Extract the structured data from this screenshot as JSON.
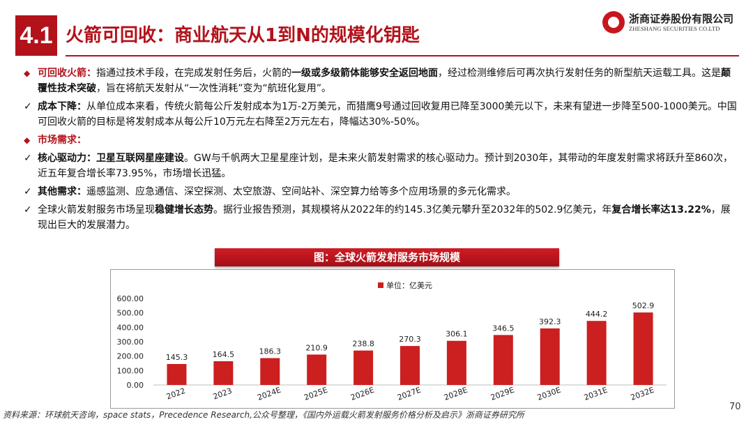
{
  "header": {
    "section": "4.1",
    "title": "火箭可回收：商业航天从1到N的规模化钥匙",
    "logo_cn": "浙商证券股份有限公司",
    "logo_en": "ZHESHANG SECURITIES CO.LTD"
  },
  "colors": {
    "accent": "#b3121b",
    "bar": "#cc1f1f"
  },
  "icons": {
    "diamond": "◆",
    "check": "✓"
  },
  "bullets": {
    "b1": {
      "label": "可回收火箭：",
      "t1": "指通过技术手段，在完成发射任务后，火箭的",
      "s1": "一级或多级箭体能够安全返回地面",
      "t2": "，经过检测维修后可再次执行发射任务的新型航天运载工具。这是",
      "s2": "颠覆性技术突破",
      "t3": "，旨在将航天发射从“一次性消耗”变为“航班化复用”。"
    },
    "b2": {
      "label": "成本下降：",
      "t1": "从单位成本来看，传统火箭每公斤发射成本为1万-2万美元，而猎鹰9号通过回收复用已降至3000美元以下，未来有望进一步降至500-1000美元。中国可回收火箭的目标是将发射成本从每公斤10万元左右降至2万元左右，降幅达30%-50%。"
    },
    "b3": {
      "label": "市场需求："
    },
    "b4": {
      "label": "核心驱动力：",
      "s1": "卫星互联网星座建设",
      "t1": "。GW与千帆两大卫星星座计划，是未来火箭发射需求的核心驱动力。预计到2030年，其带动的年度发射需求将跃升至860次，近五年复合增长率73.95%，市场增长迅猛。"
    },
    "b5": {
      "label": "其他需求：",
      "t1": "遥感监测、应急通信、深空探测、太空旅游、空间站补、深空算力给等多个应用场景的多元化需求。"
    },
    "b6": {
      "t1": "全球火箭发射服务市场呈现",
      "s1": "稳健增长态势",
      "t2": "。据行业报告预测，其规模将从2022年的约145.3亿美元攀升至2032年的502.9亿美元，年",
      "s2": "复合增长率达13.22%",
      "t3": "，展现出巨大的发展潜力。"
    }
  },
  "chart_banner": "图：全球火箭发射服务市场规模",
  "chart_data": {
    "type": "bar",
    "title": "",
    "categories": [
      "2022",
      "2023",
      "2024E",
      "2025E",
      "2026E",
      "2027E",
      "2028E",
      "2029E",
      "2030E",
      "2031E",
      "2032E"
    ],
    "series": [
      {
        "name": "单位：亿美元",
        "values": [
          145.3,
          164.5,
          186.3,
          210.9,
          238.8,
          270.3,
          306.1,
          346.5,
          392.3,
          444.2,
          502.9
        ]
      }
    ],
    "data_labels": [
      "145.3",
      "164.5",
      "186.3",
      "210.9",
      "238.8",
      "270.3",
      "306.1",
      "346.5",
      "392.3",
      "444.2",
      "502.9"
    ],
    "yticks": [
      "0.00",
      "100.00",
      "200.00",
      "300.00",
      "400.00",
      "500.00",
      "600.00"
    ],
    "ylim": [
      0,
      600
    ],
    "legend": "top-center",
    "grid": false
  },
  "footer": {
    "source": "资料来源：环球航天咨询，space stats，Precedence Research,公众号整理，《国内外运载火箭发射服务价格分析及启示》浙商证券研究所",
    "page": "70"
  }
}
